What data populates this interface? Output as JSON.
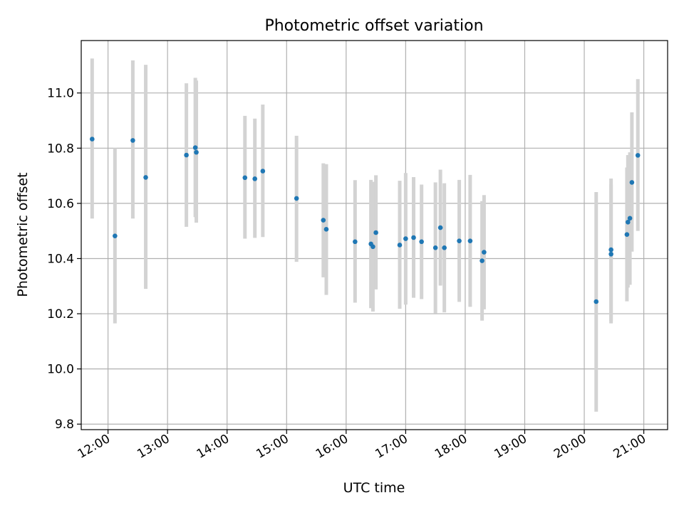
{
  "chart_data": {
    "type": "scatter",
    "title": "Photometric offset variation",
    "xlabel": "UTC time",
    "ylabel": "Photometric offset",
    "xlim": [
      "11:33",
      "21:24"
    ],
    "ylim": [
      9.78,
      11.19
    ],
    "x_ticks": [
      "12:00",
      "13:00",
      "14:00",
      "15:00",
      "16:00",
      "17:00",
      "18:00",
      "19:00",
      "20:00",
      "21:00"
    ],
    "y_ticks": [
      "9.8",
      "10.0",
      "10.2",
      "10.4",
      "10.6",
      "10.8",
      "11.0"
    ],
    "grid": true,
    "colors": {
      "point": "#1f77b4",
      "errorbar": "#d3d3d3",
      "grid": "#b0b0b0"
    },
    "points": [
      {
        "x": "11:44",
        "y": 10.833,
        "ylo": 10.545,
        "yhi": 11.125
      },
      {
        "x": "12:07",
        "y": 10.482,
        "ylo": 10.165,
        "yhi": 10.8
      },
      {
        "x": "12:25",
        "y": 10.828,
        "ylo": 10.545,
        "yhi": 11.118
      },
      {
        "x": "12:38",
        "y": 10.694,
        "ylo": 10.29,
        "yhi": 11.102
      },
      {
        "x": "13:19",
        "y": 10.775,
        "ylo": 10.515,
        "yhi": 11.035
      },
      {
        "x": "13:28",
        "y": 10.802,
        "ylo": 10.55,
        "yhi": 11.055
      },
      {
        "x": "13:29",
        "y": 10.785,
        "ylo": 10.53,
        "yhi": 11.045
      },
      {
        "x": "14:18",
        "y": 10.693,
        "ylo": 10.472,
        "yhi": 10.917
      },
      {
        "x": "14:28",
        "y": 10.689,
        "ylo": 10.475,
        "yhi": 10.907
      },
      {
        "x": "14:36",
        "y": 10.717,
        "ylo": 10.478,
        "yhi": 10.958
      },
      {
        "x": "15:10",
        "y": 10.618,
        "ylo": 10.388,
        "yhi": 10.845
      },
      {
        "x": "15:37",
        "y": 10.539,
        "ylo": 10.332,
        "yhi": 10.745
      },
      {
        "x": "15:40",
        "y": 10.506,
        "ylo": 10.268,
        "yhi": 10.742
      },
      {
        "x": "16:09",
        "y": 10.461,
        "ylo": 10.24,
        "yhi": 10.684
      },
      {
        "x": "16:25",
        "y": 10.453,
        "ylo": 10.22,
        "yhi": 10.685
      },
      {
        "x": "16:27",
        "y": 10.443,
        "ylo": 10.208,
        "yhi": 10.678
      },
      {
        "x": "16:30",
        "y": 10.494,
        "ylo": 10.288,
        "yhi": 10.702
      },
      {
        "x": "16:54",
        "y": 10.449,
        "ylo": 10.218,
        "yhi": 10.682
      },
      {
        "x": "17:00",
        "y": 10.472,
        "ylo": 10.233,
        "yhi": 10.71
      },
      {
        "x": "17:08",
        "y": 10.476,
        "ylo": 10.258,
        "yhi": 10.695
      },
      {
        "x": "17:16",
        "y": 10.461,
        "ylo": 10.253,
        "yhi": 10.668
      },
      {
        "x": "17:30",
        "y": 10.439,
        "ylo": 10.202,
        "yhi": 10.676
      },
      {
        "x": "17:35",
        "y": 10.512,
        "ylo": 10.302,
        "yhi": 10.722
      },
      {
        "x": "17:39",
        "y": 10.439,
        "ylo": 10.205,
        "yhi": 10.673
      },
      {
        "x": "17:54",
        "y": 10.464,
        "ylo": 10.243,
        "yhi": 10.685
      },
      {
        "x": "18:05",
        "y": 10.464,
        "ylo": 10.225,
        "yhi": 10.703
      },
      {
        "x": "18:17",
        "y": 10.392,
        "ylo": 10.175,
        "yhi": 10.608
      },
      {
        "x": "18:19",
        "y": 10.423,
        "ylo": 10.216,
        "yhi": 10.63
      },
      {
        "x": "20:12",
        "y": 10.244,
        "ylo": 9.845,
        "yhi": 10.641
      },
      {
        "x": "20:27",
        "y": 10.416,
        "ylo": 10.165,
        "yhi": 10.668
      },
      {
        "x": "20:27",
        "y": 10.432,
        "ylo": 10.175,
        "yhi": 10.69
      },
      {
        "x": "20:43",
        "y": 10.487,
        "ylo": 10.245,
        "yhi": 10.73
      },
      {
        "x": "20:44",
        "y": 10.532,
        "ylo": 10.295,
        "yhi": 10.775
      },
      {
        "x": "20:46",
        "y": 10.546,
        "ylo": 10.305,
        "yhi": 10.785
      },
      {
        "x": "20:48",
        "y": 10.676,
        "ylo": 10.425,
        "yhi": 10.93
      },
      {
        "x": "20:54",
        "y": 10.774,
        "ylo": 10.5,
        "yhi": 11.05
      }
    ]
  }
}
